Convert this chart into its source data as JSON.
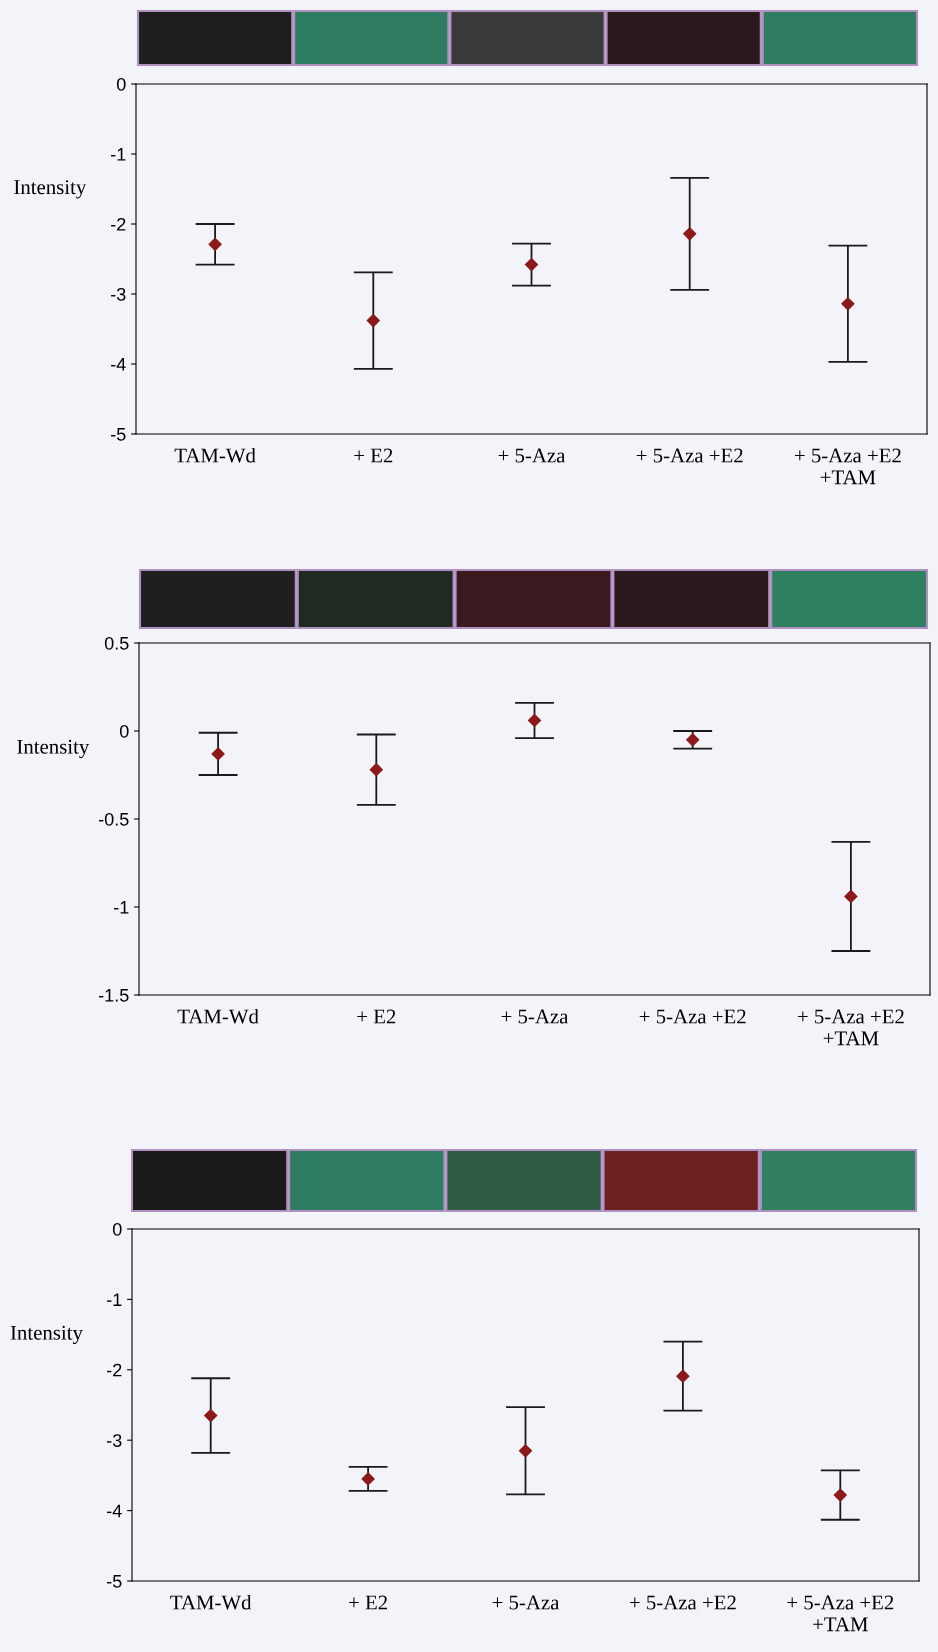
{
  "chart_data": [
    {
      "type": "scatter",
      "ylabel": "Intensity",
      "categories": [
        "TAM-Wd",
        "+ E2",
        "+ 5-Aza",
        "+ 5-Aza +E2",
        "+ 5-Aza +E2\n+TAM"
      ],
      "ylim": [
        -5,
        0
      ],
      "yticks": [
        0,
        -1,
        -2,
        -3,
        -4,
        -5
      ],
      "marker": "diamond",
      "series": [
        {
          "color": "#8b1a1a",
          "values": [
            -2.29,
            -3.38,
            -2.58,
            -2.14,
            -3.14
          ],
          "errors": [
            0.29,
            0.69,
            0.3,
            0.8,
            0.83
          ]
        }
      ]
    },
    {
      "type": "scatter",
      "ylabel": "Intensity",
      "categories": [
        "TAM-Wd",
        "+ E2",
        "+ 5-Aza",
        "+ 5-Aza +E2",
        "+ 5-Aza +E2\n+TAM"
      ],
      "ylim": [
        -1.5,
        0.5
      ],
      "yticks": [
        0.5,
        0,
        -0.5,
        -1,
        -1.5
      ],
      "marker": "diamond",
      "series": [
        {
          "color": "#8b1a1a",
          "values": [
            -0.13,
            -0.22,
            0.06,
            -0.05,
            -0.94
          ],
          "errors": [
            0.12,
            0.2,
            0.1,
            0.05,
            0.31
          ]
        }
      ]
    },
    {
      "type": "scatter",
      "ylabel": "Intensity",
      "categories": [
        "TAM-Wd",
        "+ E2",
        "+ 5-Aza",
        "+ 5-Aza +E2",
        "+ 5-Aza +E2\n+TAM"
      ],
      "ylim": [
        -5,
        0
      ],
      "yticks": [
        0,
        -1,
        -2,
        -3,
        -4,
        -5
      ],
      "marker": "diamond",
      "series": [
        {
          "color": "#8b1a1a",
          "values": [
            -2.65,
            -3.55,
            -3.15,
            -2.09,
            -3.78
          ],
          "errors": [
            0.53,
            0.17,
            0.62,
            0.49,
            0.35
          ]
        }
      ]
    }
  ]
}
